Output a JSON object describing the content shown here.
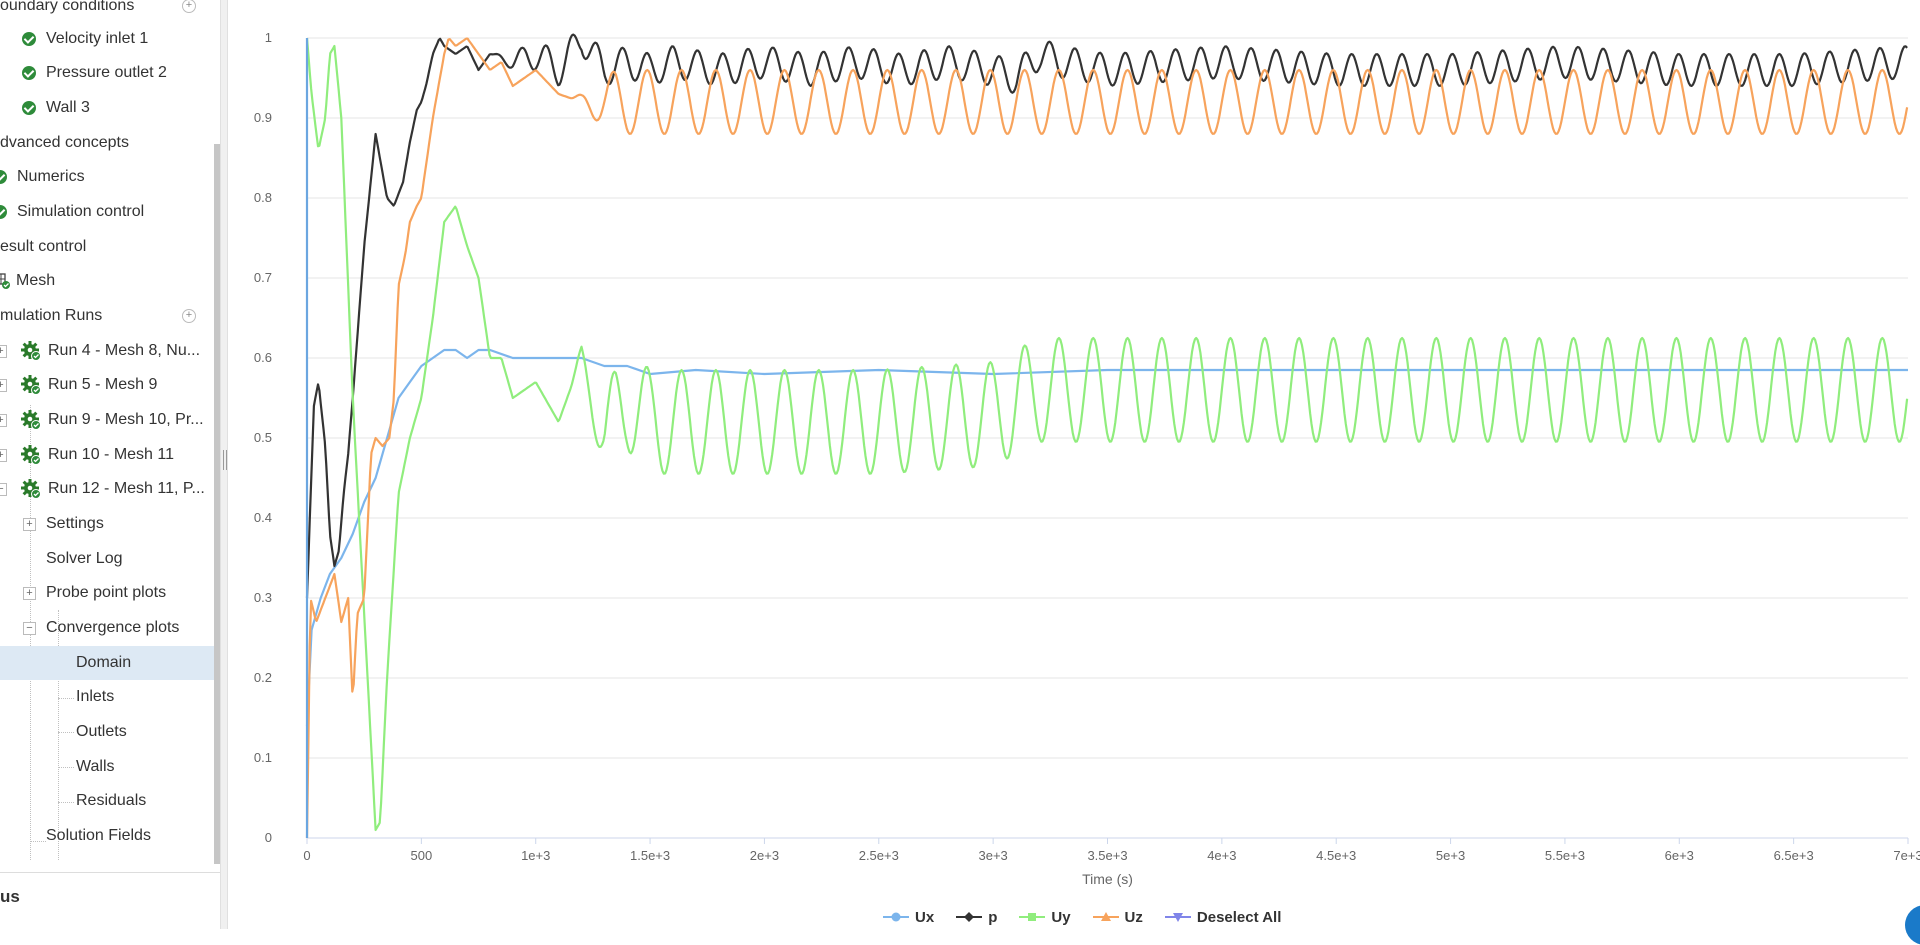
{
  "sidebar": {
    "items": [
      {
        "label": "oundary conditions"
      },
      {
        "label": "Velocity inlet 1"
      },
      {
        "label": "Pressure outlet 2"
      },
      {
        "label": "Wall 3"
      },
      {
        "label": "dvanced concepts"
      },
      {
        "label": "Numerics"
      },
      {
        "label": "Simulation control"
      },
      {
        "label": "esult control"
      },
      {
        "label": "Mesh"
      },
      {
        "label": "mulation Runs"
      },
      {
        "label": "Run 4 - Mesh 8, Nu..."
      },
      {
        "label": "Run 5 - Mesh 9"
      },
      {
        "label": "Run 9 - Mesh 10, Pr..."
      },
      {
        "label": "Run 10 - Mesh 11"
      },
      {
        "label": "Run 12 - Mesh 11, P..."
      },
      {
        "label": "Settings"
      },
      {
        "label": "Solver Log"
      },
      {
        "label": "Probe point plots"
      },
      {
        "label": "Convergence plots"
      },
      {
        "label": "Domain"
      },
      {
        "label": "Inlets"
      },
      {
        "label": "Outlets"
      },
      {
        "label": "Walls"
      },
      {
        "label": "Residuals"
      },
      {
        "label": "Solution Fields"
      }
    ],
    "selected": "Domain"
  },
  "bottom_panel": {
    "title": "us"
  },
  "icons": {
    "check": "check-circle-icon",
    "gear": "gear-icon",
    "mesh": "mesh-icon",
    "add": "add-icon",
    "expand": "plus-box-icon",
    "collapse": "minus-box-icon"
  },
  "chart_data": {
    "type": "line",
    "xlabel": "Time (s)",
    "ylabel": "",
    "xlim": [
      0,
      7000
    ],
    "ylim": [
      0,
      1
    ],
    "x_ticks": [
      {
        "v": 0,
        "label": "0"
      },
      {
        "v": 500,
        "label": "500"
      },
      {
        "v": 1000,
        "label": "1e+3"
      },
      {
        "v": 1500,
        "label": "1.5e+3"
      },
      {
        "v": 2000,
        "label": "2e+3"
      },
      {
        "v": 2500,
        "label": "2.5e+3"
      },
      {
        "v": 3000,
        "label": "3e+3"
      },
      {
        "v": 3500,
        "label": "3.5e+3"
      },
      {
        "v": 4000,
        "label": "4e+3"
      },
      {
        "v": 4500,
        "label": "4.5e+3"
      },
      {
        "v": 5000,
        "label": "5e+3"
      },
      {
        "v": 5500,
        "label": "5.5e+3"
      },
      {
        "v": 6000,
        "label": "6e+3"
      },
      {
        "v": 6500,
        "label": "6.5e+3"
      },
      {
        "v": 7000,
        "label": "7e+3"
      }
    ],
    "y_ticks": [
      {
        "v": 0,
        "label": "0"
      },
      {
        "v": 0.1,
        "label": "0.1"
      },
      {
        "v": 0.2,
        "label": "0.2"
      },
      {
        "v": 0.3,
        "label": "0.3"
      },
      {
        "v": 0.4,
        "label": "0.4"
      },
      {
        "v": 0.5,
        "label": "0.5"
      },
      {
        "v": 0.6,
        "label": "0.6"
      },
      {
        "v": 0.7,
        "label": "0.7"
      },
      {
        "v": 0.8,
        "label": "0.8"
      },
      {
        "v": 0.9,
        "label": "0.9"
      },
      {
        "v": 1,
        "label": "1"
      }
    ],
    "grid": true,
    "legend_position": "bottom-center",
    "series": [
      {
        "name": "Ux",
        "color": "#7cb5ec",
        "marker": "circle",
        "x": [
          0,
          20,
          60,
          100,
          150,
          200,
          250,
          300,
          350,
          400,
          450,
          500,
          550,
          600,
          650,
          700,
          750,
          800,
          900,
          1000,
          1100,
          1200,
          1300,
          1400,
          1500,
          1700,
          2000,
          2500,
          3000,
          3500,
          4000,
          4500,
          5000,
          5500,
          6000,
          6500,
          7000
        ],
        "y": [
          0.14,
          0.26,
          0.3,
          0.33,
          0.35,
          0.38,
          0.42,
          0.45,
          0.5,
          0.55,
          0.57,
          0.59,
          0.6,
          0.61,
          0.61,
          0.6,
          0.61,
          0.61,
          0.6,
          0.6,
          0.6,
          0.6,
          0.59,
          0.59,
          0.58,
          0.585,
          0.58,
          0.585,
          0.58,
          0.585,
          0.585,
          0.585,
          0.585,
          0.585,
          0.585,
          0.585,
          0.585
        ]
      },
      {
        "name": "p",
        "color": "#333333",
        "marker": "diamond",
        "x": [
          0,
          30,
          50,
          80,
          100,
          120,
          140,
          160,
          180,
          200,
          250,
          300,
          350,
          380,
          420,
          450,
          480,
          500,
          520,
          550,
          580,
          600,
          650,
          700,
          750,
          800,
          900,
          1000,
          1100,
          1200,
          1250,
          1300,
          1400,
          1500,
          1600,
          1800,
          2000,
          2200,
          2400,
          2600,
          2800,
          3000,
          3100,
          3200,
          3300,
          3500,
          4000,
          4500,
          5000,
          5500,
          6000,
          6500,
          7000
        ],
        "y": [
          0.3,
          0.54,
          0.57,
          0.49,
          0.38,
          0.34,
          0.36,
          0.43,
          0.48,
          0.55,
          0.74,
          0.88,
          0.8,
          0.79,
          0.82,
          0.87,
          0.91,
          0.92,
          0.94,
          0.98,
          1.0,
          0.99,
          0.98,
          0.99,
          0.96,
          0.98,
          0.97,
          0.98,
          0.96,
          1.0,
          0.98,
          0.96,
          0.97,
          0.96,
          0.97,
          0.96,
          0.97,
          0.96,
          0.97,
          0.96,
          0.97,
          0.96,
          0.95,
          0.98,
          0.97,
          0.96,
          0.97,
          0.96,
          0.96,
          0.97,
          0.96,
          0.96,
          0.97
        ],
        "osc_amp": 0.02,
        "osc_period": 110,
        "osc_start": 800
      },
      {
        "name": "Uy",
        "color": "#90ed7d",
        "marker": "square",
        "x": [
          0,
          20,
          50,
          80,
          100,
          120,
          150,
          200,
          250,
          300,
          320,
          350,
          400,
          450,
          500,
          550,
          600,
          650,
          700,
          750,
          800,
          850,
          900,
          1000,
          1100,
          1200,
          1300,
          1400,
          1500,
          1700,
          2000,
          2500,
          3000,
          3200,
          3500,
          4000,
          4500,
          5000,
          5500,
          6000,
          6500,
          7000
        ],
        "y": [
          1.0,
          0.93,
          0.86,
          0.9,
          0.98,
          0.99,
          0.9,
          0.55,
          0.28,
          0.01,
          0.02,
          0.2,
          0.43,
          0.5,
          0.55,
          0.65,
          0.77,
          0.79,
          0.74,
          0.7,
          0.6,
          0.6,
          0.55,
          0.57,
          0.52,
          0.6,
          0.5,
          0.55,
          0.52,
          0.52,
          0.52,
          0.52,
          0.53,
          0.56,
          0.56,
          0.56,
          0.56,
          0.56,
          0.56,
          0.56,
          0.56,
          0.56
        ],
        "osc_amp": 0.065,
        "osc_period": 150,
        "osc_start": 1150
      },
      {
        "name": "Uz",
        "color": "#f7a35c",
        "marker": "triangle",
        "x": [
          0,
          15,
          40,
          80,
          120,
          150,
          180,
          200,
          220,
          250,
          280,
          300,
          330,
          360,
          380,
          400,
          430,
          450,
          480,
          500,
          550,
          600,
          620,
          650,
          700,
          750,
          800,
          850,
          900,
          1000,
          1100,
          1200,
          1300,
          1400,
          1500,
          1700,
          2000,
          2500,
          3000,
          3200,
          3500,
          4000,
          4500,
          5000,
          5500,
          6000,
          6500,
          7000
        ],
        "y": [
          0.0,
          0.3,
          0.27,
          0.3,
          0.33,
          0.27,
          0.3,
          0.17,
          0.28,
          0.3,
          0.48,
          0.5,
          0.49,
          0.5,
          0.55,
          0.69,
          0.73,
          0.77,
          0.79,
          0.8,
          0.9,
          0.98,
          1.0,
          0.99,
          1.0,
          0.98,
          0.96,
          0.97,
          0.94,
          0.96,
          0.93,
          0.92,
          0.92,
          0.92,
          0.92,
          0.92,
          0.92,
          0.92,
          0.92,
          0.92,
          0.92,
          0.92,
          0.92,
          0.92,
          0.92,
          0.92,
          0.92,
          0.92
        ],
        "osc_amp": 0.04,
        "osc_period": 150,
        "osc_start": 1150
      },
      {
        "name": "Vertical",
        "color": "#6ba6e0",
        "marker": "none",
        "x": [
          0,
          0
        ],
        "y": [
          0.0,
          1.0
        ]
      }
    ],
    "legend": [
      {
        "label": "Ux",
        "color": "#7cb5ec",
        "marker": "circle"
      },
      {
        "label": "p",
        "color": "#333333",
        "marker": "diamond"
      },
      {
        "label": "Uy",
        "color": "#90ed7d",
        "marker": "square"
      },
      {
        "label": "Uz",
        "color": "#f7a35c",
        "marker": "triangle"
      },
      {
        "label": "Deselect All",
        "color": "#8085e9",
        "marker": "triangle-down"
      }
    ]
  }
}
